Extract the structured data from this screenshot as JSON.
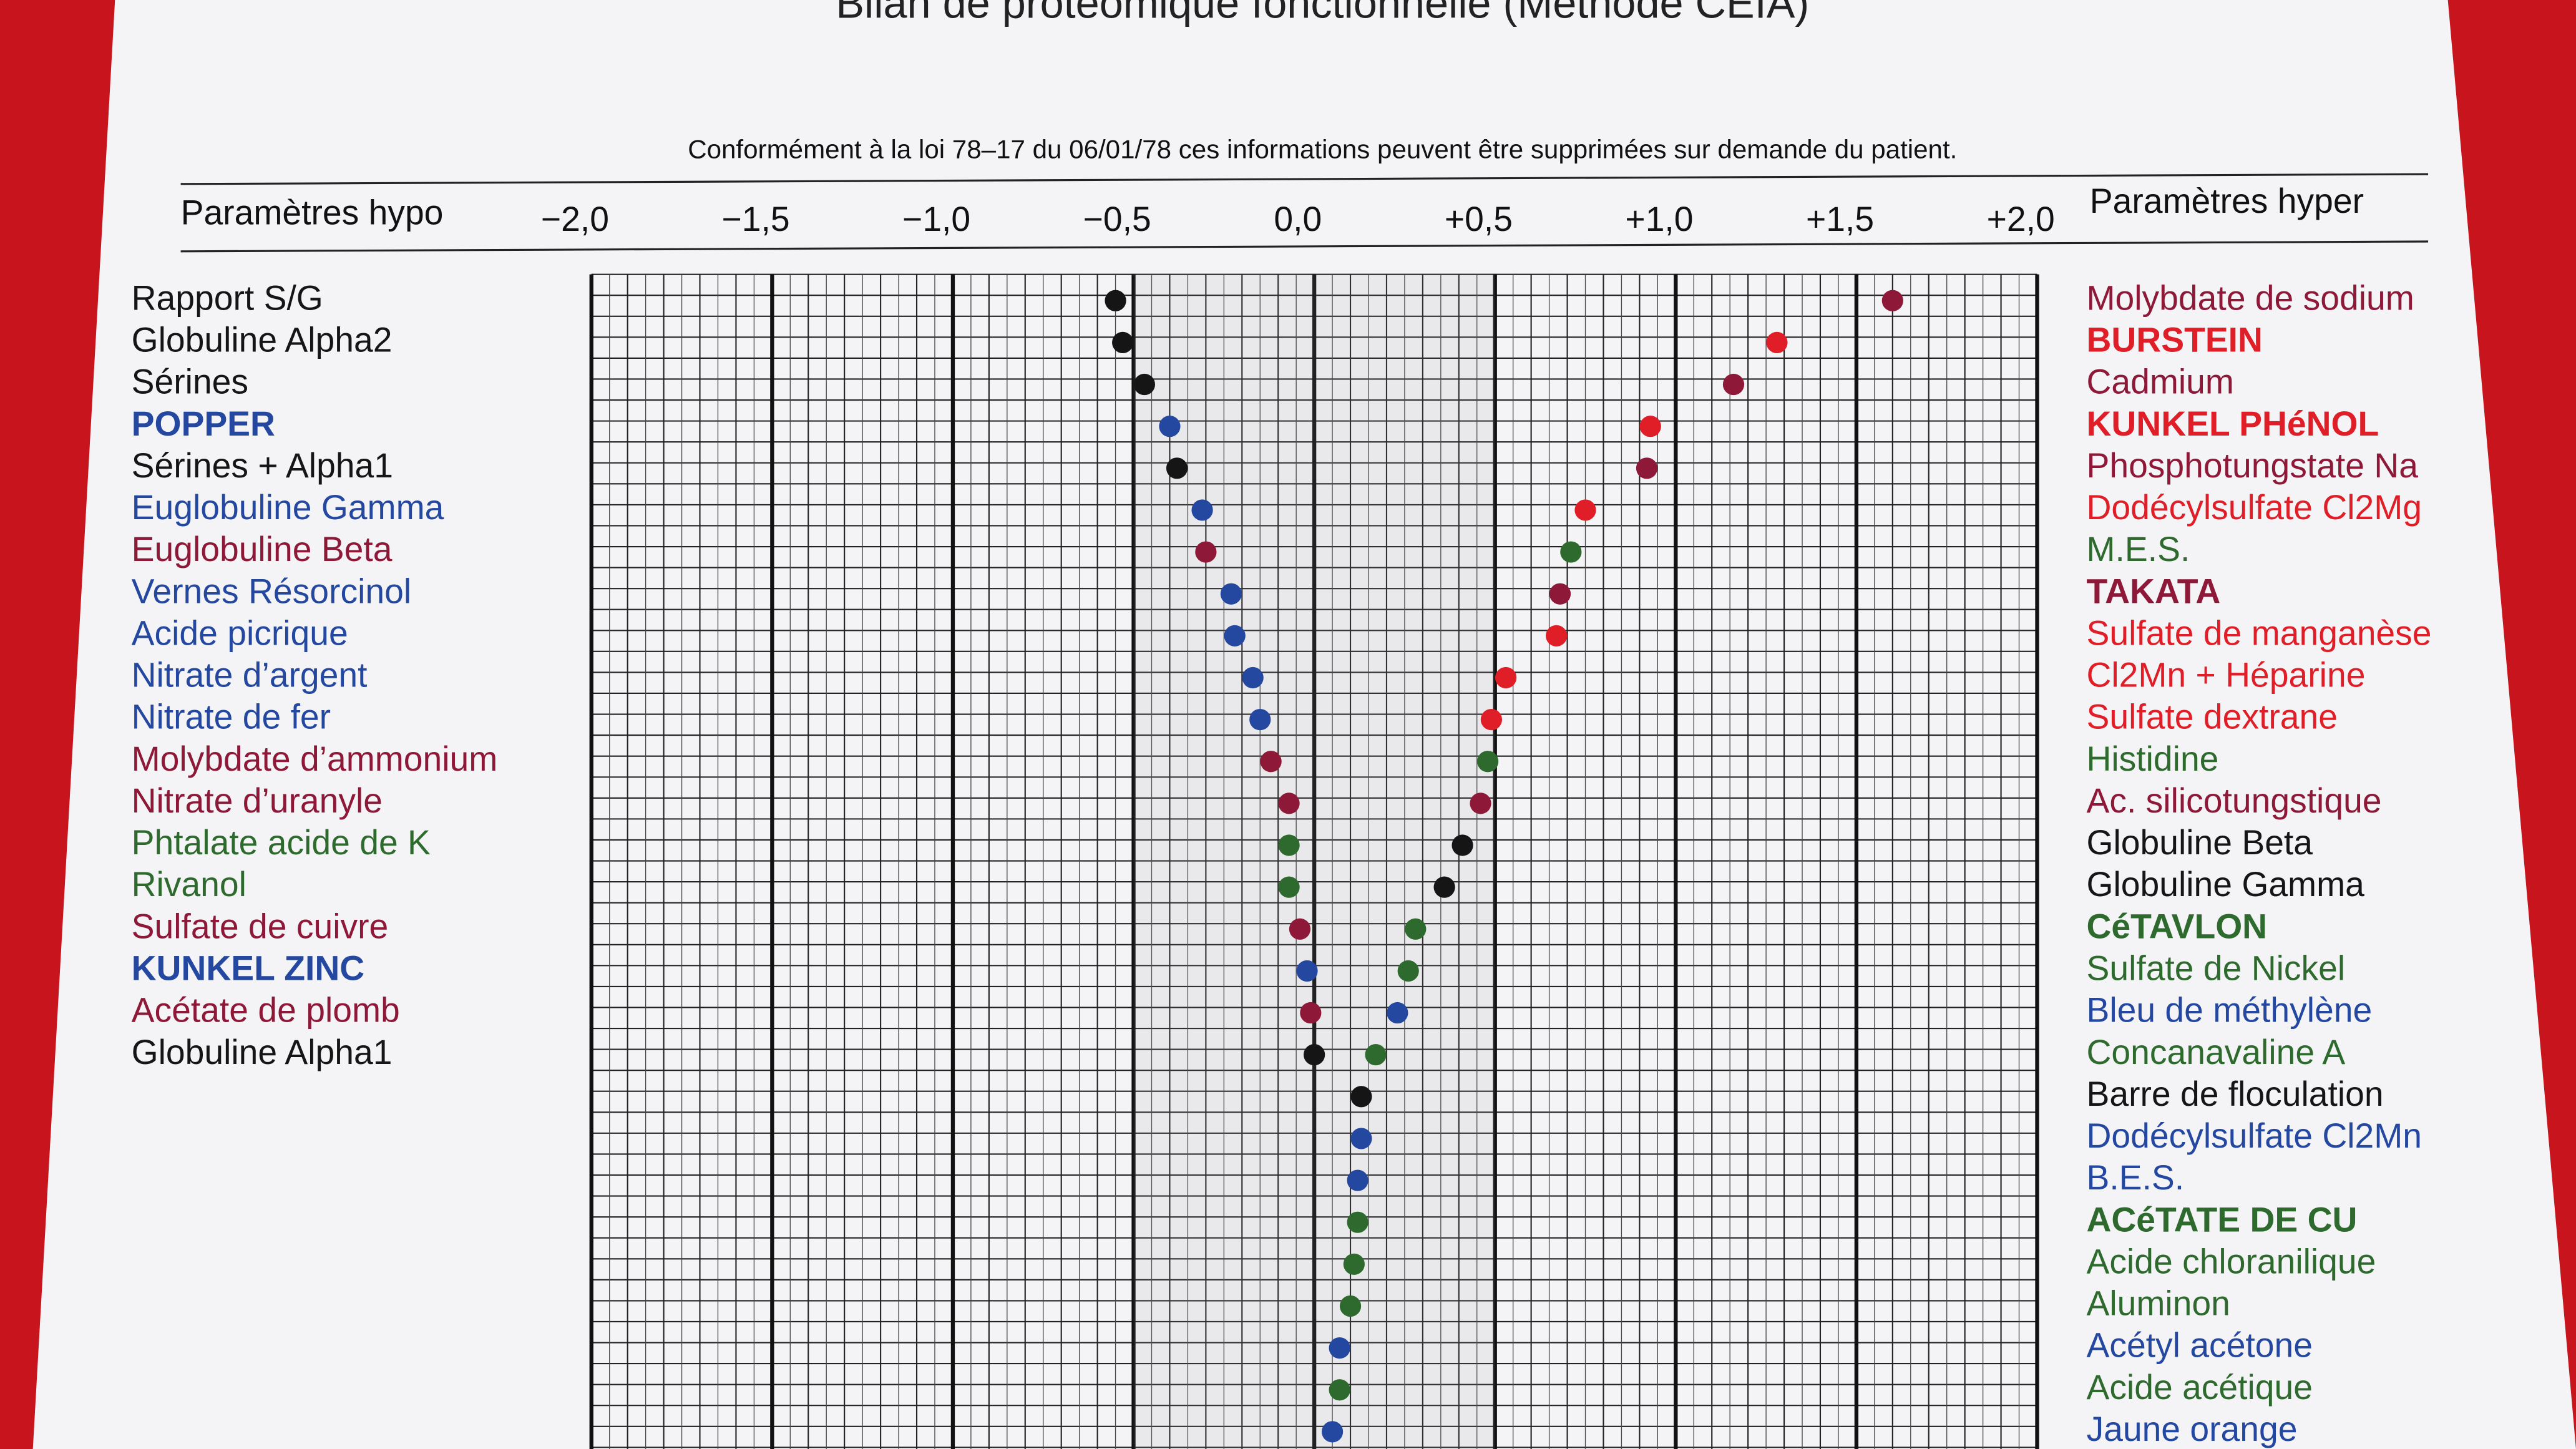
{
  "chart_data": {
    "type": "dot",
    "title": "Bilan de protéomique fonctionnelle (Méthode CEIA)",
    "note": "Conformément à la loi 78–17 du 06/01/78 ces informations peuvent être supprimées sur demande du patient.",
    "left_axis_label": "Paramètres hypo",
    "right_axis_label": "Paramètres hyper",
    "xlim": [
      -2,
      2
    ],
    "xticks": [
      {
        "value": -2,
        "label": "−2,0"
      },
      {
        "value": -1.5,
        "label": "−1,5"
      },
      {
        "value": -1,
        "label": "−1,0"
      },
      {
        "value": -0.5,
        "label": "−0,5"
      },
      {
        "value": 0,
        "label": "0,0"
      },
      {
        "value": 0.5,
        "label": "+0,5"
      },
      {
        "value": 1,
        "label": "+1,0"
      },
      {
        "value": 1.5,
        "label": "+1,5"
      },
      {
        "value": 2,
        "label": "+2,0"
      }
    ],
    "left": [
      {
        "name": "Rapport S/G",
        "value": -0.55,
        "color": "#151515",
        "bold": false
      },
      {
        "name": "Globuline Alpha2",
        "value": -0.53,
        "color": "#151515",
        "bold": false
      },
      {
        "name": "Sérines",
        "value": -0.47,
        "color": "#151515",
        "bold": false
      },
      {
        "name": "POPPER",
        "value": -0.4,
        "color": "#2447a0",
        "bold": true
      },
      {
        "name": "Sérines + Alpha1",
        "value": -0.38,
        "color": "#151515",
        "bold": false
      },
      {
        "name": "Euglobuline Gamma",
        "value": -0.31,
        "color": "#2447a0",
        "bold": false
      },
      {
        "name": "Euglobuline Beta",
        "value": -0.3,
        "color": "#8e1838",
        "bold": false
      },
      {
        "name": "Vernes Résorcinol",
        "value": -0.23,
        "color": "#2447a0",
        "bold": false
      },
      {
        "name": "Acide picrique",
        "value": -0.22,
        "color": "#2447a0",
        "bold": false
      },
      {
        "name": "Nitrate d’argent",
        "value": -0.17,
        "color": "#2447a0",
        "bold": false
      },
      {
        "name": "Nitrate de fer",
        "value": -0.15,
        "color": "#2447a0",
        "bold": false
      },
      {
        "name": "Molybdate d’ammonium",
        "value": -0.12,
        "color": "#8e1838",
        "bold": false
      },
      {
        "name": "Nitrate d’uranyle",
        "value": -0.07,
        "color": "#8e1838",
        "bold": false
      },
      {
        "name": "Phtalate acide de K",
        "value": -0.07,
        "color": "#2e6a2e",
        "bold": false
      },
      {
        "name": "Rivanol",
        "value": -0.07,
        "color": "#2e6a2e",
        "bold": false
      },
      {
        "name": "Sulfate de cuivre",
        "value": -0.04,
        "color": "#8e1838",
        "bold": false
      },
      {
        "name": "KUNKEL ZINC",
        "value": -0.02,
        "color": "#2447a0",
        "bold": true
      },
      {
        "name": "Acétate de plomb",
        "value": -0.01,
        "color": "#8e1838",
        "bold": false
      },
      {
        "name": "Globuline Alpha1",
        "value": 0,
        "color": "#151515",
        "bold": false
      }
    ],
    "right": [
      {
        "name": "Molybdate de sodium",
        "value": 1.6,
        "color": "#8e1838",
        "bold": false
      },
      {
        "name": "BURSTEIN",
        "value": 1.28,
        "color": "#e01e28",
        "bold": true
      },
      {
        "name": "Cadmium",
        "value": 1.16,
        "color": "#8e1838",
        "bold": false
      },
      {
        "name": "KUNKEL PHéNOL",
        "value": 0.93,
        "color": "#e01e28",
        "bold": true
      },
      {
        "name": "Phosphotungstate Na",
        "value": 0.92,
        "color": "#8e1838",
        "bold": false
      },
      {
        "name": "Dodécylsulfate Cl2Mg",
        "value": 0.75,
        "color": "#e01e28",
        "bold": false
      },
      {
        "name": "M.E.S.",
        "value": 0.71,
        "color": "#2e6a2e",
        "bold": false
      },
      {
        "name": "TAKATA",
        "value": 0.68,
        "color": "#8e1838",
        "bold": true
      },
      {
        "name": "Sulfate de manganèse",
        "value": 0.67,
        "color": "#e01e28",
        "bold": false
      },
      {
        "name": "Cl2Mn + Héparine",
        "value": 0.53,
        "color": "#e01e28",
        "bold": false
      },
      {
        "name": "Sulfate dextrane",
        "value": 0.49,
        "color": "#e01e28",
        "bold": false
      },
      {
        "name": "Histidine",
        "value": 0.48,
        "color": "#2e6a2e",
        "bold": false
      },
      {
        "name": "Ac. silicotungstique",
        "value": 0.46,
        "color": "#8e1838",
        "bold": false
      },
      {
        "name": "Globuline Beta",
        "value": 0.41,
        "color": "#151515",
        "bold": false
      },
      {
        "name": "Globuline Gamma",
        "value": 0.36,
        "color": "#151515",
        "bold": false
      },
      {
        "name": "CéTAVLON",
        "value": 0.28,
        "color": "#2e6a2e",
        "bold": true
      },
      {
        "name": "Sulfate de Nickel",
        "value": 0.26,
        "color": "#2e6a2e",
        "bold": false
      },
      {
        "name": "Bleu de méthylène",
        "value": 0.23,
        "color": "#2447a0",
        "bold": false
      },
      {
        "name": "Concanavaline A",
        "value": 0.17,
        "color": "#2e6a2e",
        "bold": false
      },
      {
        "name": "Barre de floculation",
        "value": 0.13,
        "color": "#151515",
        "bold": false
      },
      {
        "name": "Dodécylsulfate Cl2Mn",
        "value": 0.13,
        "color": "#2447a0",
        "bold": false
      },
      {
        "name": "B.E.S.",
        "value": 0.12,
        "color": "#2447a0",
        "bold": false
      },
      {
        "name": "ACéTATE DE CU",
        "value": 0.12,
        "color": "#2e6a2e",
        "bold": true
      },
      {
        "name": "Acide chloranilique",
        "value": 0.11,
        "color": "#2e6a2e",
        "bold": false
      },
      {
        "name": "Aluminon",
        "value": 0.1,
        "color": "#2e6a2e",
        "bold": false
      },
      {
        "name": "Acétyl acétone",
        "value": 0.07,
        "color": "#2447a0",
        "bold": false
      },
      {
        "name": "Acide acétique",
        "value": 0.07,
        "color": "#2e6a2e",
        "bold": false
      },
      {
        "name": "Jaune orange",
        "value": 0.05,
        "color": "#2447a0",
        "bold": false
      }
    ]
  }
}
